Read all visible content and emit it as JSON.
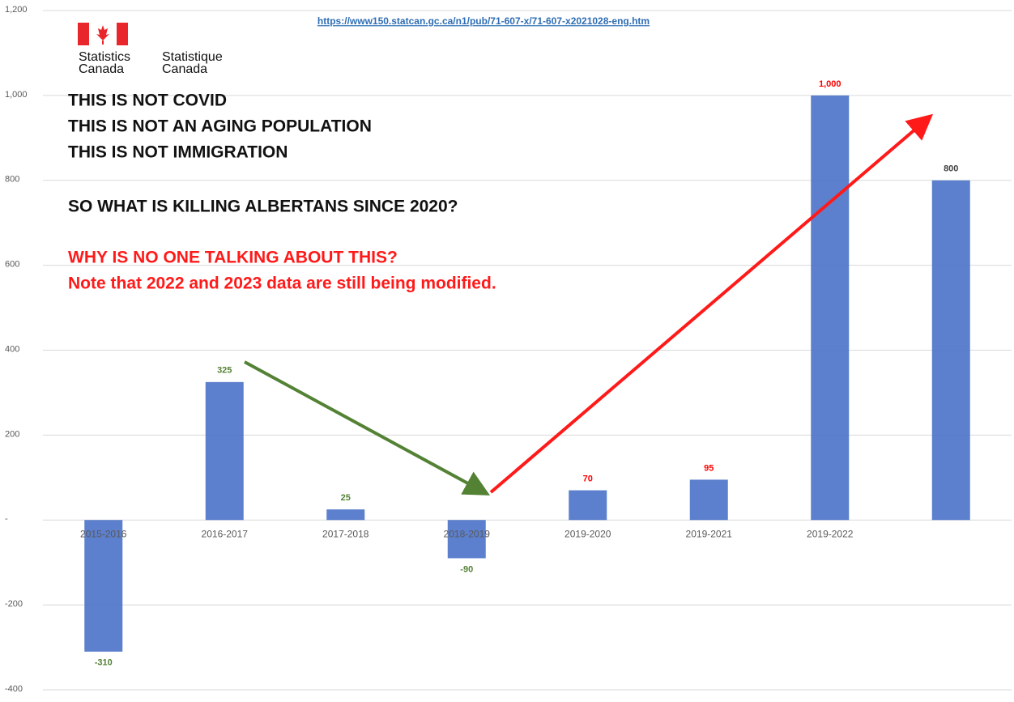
{
  "chart_data": {
    "type": "bar",
    "source_url": "https://www150.statcan.gc.ca/n1/pub/71-607-x/71-607-x2021028-eng.htm",
    "logo_texts": [
      "Statistics",
      "Canada",
      "Statistique",
      "Canada"
    ],
    "notes": [
      "THIS IS NOT COVID",
      "THIS IS NOT AN AGING POPULATION",
      "THIS IS NOT IMMIGRATION",
      "SO WHAT IS KILLING ALBERTANS SINCE 2020?"
    ],
    "warnings": [
      "WHY IS NO ONE TALKING ABOUT THIS?",
      "Note that 2022 and 2023 data are still being modified."
    ],
    "categories": [
      "2015-2016",
      "2016-2017",
      "2017-2018",
      "2018-2019",
      "2019-2020",
      "2019-2021",
      "2019-2022",
      null
    ],
    "values": [
      -310,
      325,
      25,
      -90,
      70,
      95,
      1000,
      800
    ],
    "value_labels": [
      "-310",
      "325",
      "25",
      "-90",
      "70",
      "95",
      "1,000",
      "800"
    ],
    "value_label_colors": [
      "#548235",
      "#548235",
      "#548235",
      "#548235",
      "#ff0000",
      "#ff0000",
      "#ff0000",
      "#404040"
    ],
    "color": "#4a72c8",
    "ylim": [
      -400,
      1200
    ],
    "yticks": [
      -400,
      -200,
      {
        "value": 0,
        "label": "-"
      },
      200,
      400,
      600,
      800,
      {
        "value": 1000,
        "label": "1,000"
      },
      {
        "value": 1200,
        "label": "1,200"
      }
    ],
    "grid": true
  }
}
